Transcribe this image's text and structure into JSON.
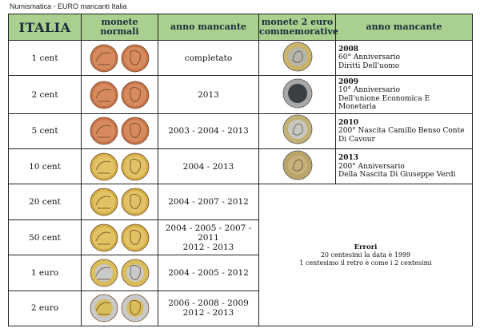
{
  "caption": "Numismatica - EURO mancanti Italia",
  "headers": {
    "country": "ITALIA",
    "normal_coins": "monete normali",
    "missing_year": "anno mancante",
    "commemorative": "monete 2 euro commemorative",
    "missing_year_2": "anno mancante"
  },
  "rows": [
    {
      "denom": "1 cent",
      "years": [
        "completato"
      ],
      "metal": "copper"
    },
    {
      "denom": "2 cent",
      "years": [
        "2013"
      ],
      "metal": "copper"
    },
    {
      "denom": "5 cent",
      "years": [
        "2003 - 2004 - 2013"
      ],
      "metal": "copper"
    },
    {
      "denom": "10 cent",
      "years": [
        "2004 - 2013"
      ],
      "metal": "gold"
    },
    {
      "denom": "20 cent",
      "years": [
        "2004 - 2007 - 2012"
      ],
      "metal": "gold"
    },
    {
      "denom": "50 cent",
      "years": [
        "2004 - 2005 - 2007 - 2011",
        "2012 - 2013"
      ],
      "metal": "gold"
    },
    {
      "denom": "1 euro",
      "years": [
        "2004 - 2005 - 2012"
      ],
      "metal": "bimetal-silver"
    },
    {
      "denom": "2 euro",
      "years": [
        "2006 - 2008 - 2009",
        "2012 - 2013"
      ],
      "metal": "bimetal-gold"
    }
  ],
  "commemoratives": [
    {
      "year": "2008",
      "line1": "60° Anniversario",
      "line2": "Diritti Dell'uomo",
      "ring": "#c9b46a",
      "center": "#b8b6a8"
    },
    {
      "year": "2009",
      "line1": "10° Anniversario",
      "line2": "Dell'unione Economica E Monetaria",
      "ring": "#a8a8a8",
      "center": "#3a3f44"
    },
    {
      "year": "2010",
      "line1": "200° Nascita Camillo Benso Conte",
      "line2": "Di Cavour",
      "ring": "#c3b277",
      "center": "#c9c8c0"
    },
    {
      "year": "2013",
      "line1": "200° Anniversario",
      "line2": "Della Nascita Di Giuseppe Verdi",
      "ring": "#b9a46a",
      "center": "#c8b07a"
    }
  ],
  "errors": {
    "title": "Errori",
    "line1": "20 centesimi la data è 1999",
    "line2": "1 centesimo il retro è come i 2 centesimi"
  },
  "colors": {
    "header_bg": "#a9d08e",
    "copper": "#c8734a",
    "gold": "#d8b24a",
    "silver": "#c8c8c8"
  }
}
